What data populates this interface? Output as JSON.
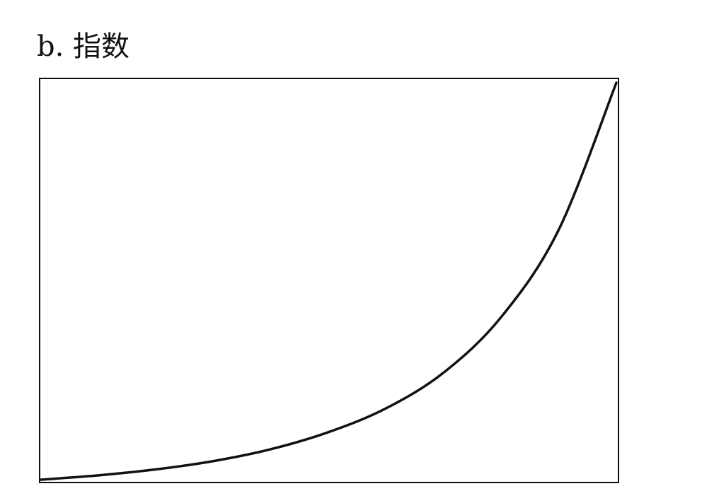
{
  "chart_data": {
    "type": "line",
    "title": "b. 指数",
    "xlabel": "",
    "ylabel": "",
    "x": [
      0,
      0.1,
      0.2,
      0.3,
      0.4,
      0.5,
      0.6,
      0.7,
      0.8,
      0.9,
      1.0
    ],
    "series": [
      {
        "values": [
          0.0,
          0.011,
          0.026,
          0.047,
          0.077,
          0.12,
          0.18,
          0.27,
          0.41,
          0.63,
          1.0
        ]
      }
    ],
    "xlim": [
      0,
      1
    ],
    "ylim": [
      0,
      1
    ],
    "grid": false,
    "axis_ticks": false,
    "colors": {
      "line": "#111111",
      "frame": "#111111",
      "background": "#ffffff"
    }
  }
}
